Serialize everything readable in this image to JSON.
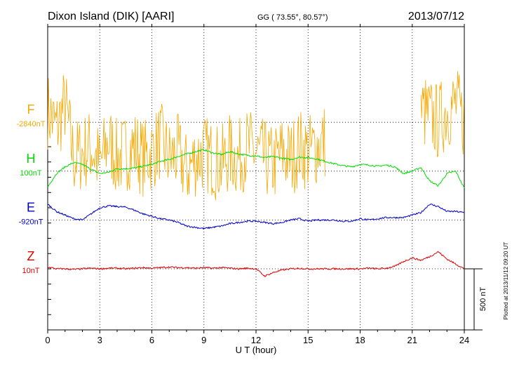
{
  "header": {
    "station": "Dixon Island (DIK)  [AARI]",
    "coords": "GG ( 73.55°,  80.57°)",
    "date": "2013/07/12"
  },
  "footer": {
    "plotted": "Plotted at 2013/11/12 09:20 UT"
  },
  "chart_data": {
    "type": "line",
    "title": "Dixon Island (DIK)  [AARI]",
    "xlabel": "U T (hour)",
    "ylabel": "",
    "xlim": [
      0,
      24
    ],
    "x_ticks": [
      "0",
      "3",
      "6",
      "9",
      "12",
      "15",
      "18",
      "21",
      "24"
    ],
    "scale_label": "500 nT",
    "scale_nT": 500,
    "colors": {
      "F": "#f5a800",
      "H": "#00dd00",
      "E": "#0000cc",
      "Z": "#dd0000"
    },
    "series": [
      {
        "name": "F",
        "baseline_label": "-2840nT",
        "baseline_nT": 0,
        "note": "intermittent large-amplitude spiky trace, data present ~0-16 UT and ~21.5-24 UT",
        "x": [
          0,
          0.5,
          1,
          1.5,
          2,
          2.5,
          3,
          3.5,
          4,
          4.5,
          5,
          5.5,
          6,
          6.5,
          7,
          7.5,
          8,
          8.5,
          9,
          9.5,
          10,
          10.5,
          11,
          11.5,
          12,
          12.5,
          13,
          13.5,
          14,
          14.5,
          15,
          15.5,
          16,
          21.5,
          22,
          22.5,
          23,
          23.5,
          24
        ],
        "values": [
          100,
          -50,
          150,
          -300,
          -250,
          -200,
          -350,
          -150,
          -300,
          -250,
          -200,
          -300,
          -250,
          -150,
          -300,
          -250,
          -400,
          -300,
          -250,
          -300,
          -350,
          -250,
          -300,
          -200,
          -250,
          -300,
          -350,
          -250,
          -300,
          -200,
          -250,
          -200,
          -150,
          100,
          50,
          0,
          100,
          150,
          0
        ]
      },
      {
        "name": "H",
        "baseline_label": "100nT",
        "baseline_nT": -400,
        "x": [
          0,
          0.5,
          1,
          1.5,
          2,
          2.5,
          3,
          3.5,
          4,
          4.5,
          5,
          5.5,
          6,
          6.5,
          7,
          7.5,
          8,
          8.5,
          9,
          9.5,
          10,
          10.5,
          11,
          11.5,
          12,
          12.5,
          13,
          13.5,
          14,
          14.5,
          15,
          15.5,
          16,
          16.5,
          17,
          17.5,
          18,
          18.5,
          19,
          19.5,
          20,
          20.5,
          21,
          21.5,
          22,
          22.5,
          23,
          23.5,
          24
        ],
        "values": [
          -130,
          -20,
          35,
          70,
          55,
          15,
          -20,
          -10,
          20,
          20,
          25,
          40,
          55,
          80,
          95,
          120,
          140,
          160,
          175,
          150,
          135,
          160,
          140,
          130,
          125,
          110,
          120,
          105,
          95,
          115,
          110,
          100,
          80,
          60,
          45,
          35,
          55,
          50,
          40,
          50,
          35,
          -20,
          0,
          30,
          -80,
          -120,
          -20,
          0,
          -140
        ]
      },
      {
        "name": "E",
        "baseline_label": "-920nT",
        "baseline_nT": -800,
        "x": [
          0,
          0.5,
          1,
          1.5,
          2,
          2.5,
          3,
          3.5,
          4,
          4.5,
          5,
          5.5,
          6,
          6.5,
          7,
          7.5,
          8,
          8.5,
          9,
          9.5,
          10,
          10.5,
          11,
          11.5,
          12,
          12.5,
          13,
          13.5,
          14,
          14.5,
          15,
          15.5,
          16,
          16.5,
          17,
          17.5,
          18,
          18.5,
          19,
          19.5,
          20,
          20.5,
          21,
          21.5,
          22,
          22.5,
          23,
          23.5,
          24
        ],
        "values": [
          130,
          70,
          40,
          10,
          0,
          50,
          100,
          115,
          110,
          105,
          80,
          50,
          30,
          10,
          0,
          -20,
          -50,
          -60,
          -70,
          -60,
          -50,
          -30,
          -20,
          -10,
          -10,
          -20,
          -30,
          -20,
          0,
          10,
          -10,
          0,
          0,
          0,
          -10,
          -10,
          10,
          0,
          10,
          20,
          20,
          20,
          40,
          60,
          130,
          110,
          70,
          70,
          60
        ]
      },
      {
        "name": "Z",
        "baseline_label": "10nT",
        "baseline_nT": -1200,
        "x": [
          0,
          0.5,
          1,
          1.5,
          2,
          2.5,
          3,
          3.5,
          4,
          4.5,
          5,
          5.5,
          6,
          6.5,
          7,
          7.5,
          8,
          8.5,
          9,
          9.5,
          10,
          10.5,
          11,
          11.5,
          12,
          12.5,
          13,
          13.5,
          14,
          14.5,
          15,
          15.5,
          16,
          16.5,
          17,
          17.5,
          18,
          18.5,
          19,
          19.5,
          20,
          20.5,
          21,
          21.5,
          22,
          22.5,
          23,
          23.5,
          24
        ],
        "values": [
          15,
          0,
          0,
          -5,
          0,
          5,
          0,
          5,
          5,
          0,
          5,
          10,
          5,
          10,
          15,
          10,
          10,
          5,
          10,
          5,
          10,
          5,
          0,
          5,
          0,
          -60,
          -30,
          -10,
          0,
          5,
          0,
          0,
          0,
          0,
          0,
          0,
          0,
          5,
          0,
          5,
          20,
          60,
          90,
          70,
          100,
          140,
          80,
          40,
          0
        ]
      }
    ]
  }
}
